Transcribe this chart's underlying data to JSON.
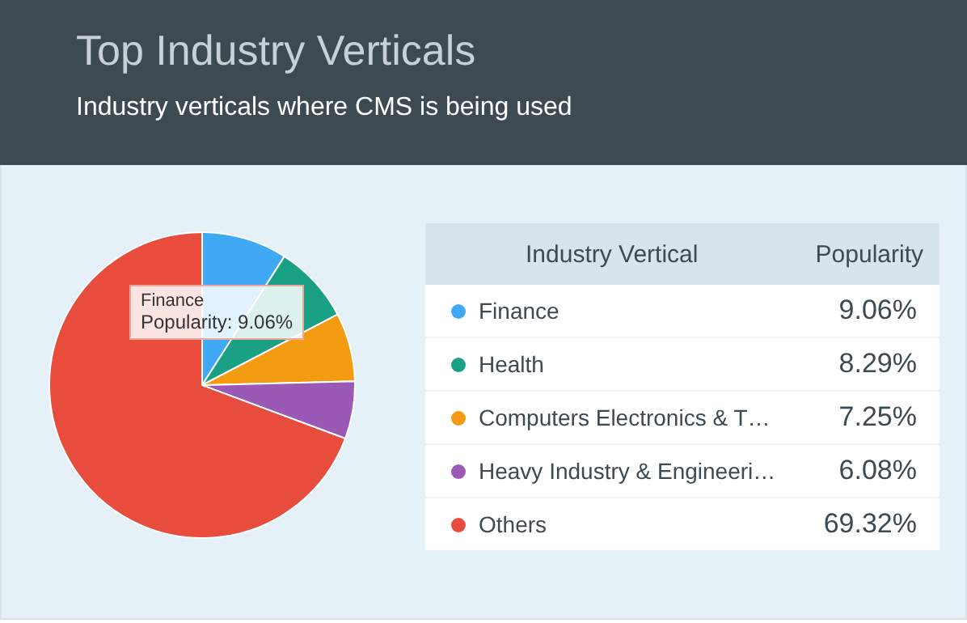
{
  "chart_data": {
    "type": "pie",
    "title": "Top Industry Verticals",
    "subtitle": "Industry verticals where CMS is being used",
    "legend_title": "Industry Vertical",
    "legend": "right",
    "categories": [
      "Finance",
      "Health",
      "Computers Electronics & T…",
      "Heavy Industry & Engineeri…",
      "Others"
    ],
    "values": [
      9.06,
      8.29,
      7.25,
      6.08,
      69.32
    ],
    "value_labels": [
      "9.06%",
      "8.29%",
      "7.25%",
      "6.08%",
      "69.32%"
    ],
    "colors": [
      "#3fa9f5",
      "#1aa185",
      "#f39c12",
      "#9b59b6",
      "#e74c3c"
    ],
    "annotations": [
      "Popularity",
      "Finance",
      "Popularity: 9.06%"
    ]
  }
}
